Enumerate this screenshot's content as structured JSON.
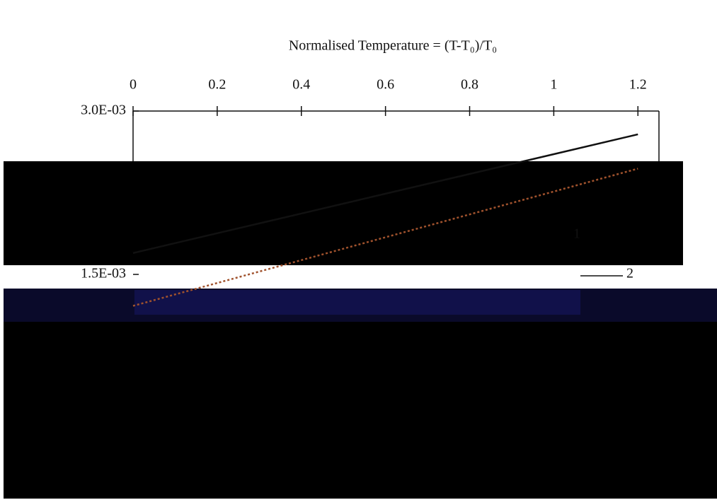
{
  "chart_data": {
    "type": "line",
    "title": "Normalised  Temperature = (T-T₀)/T₀",
    "x": [
      0,
      0.2,
      0.4,
      0.6,
      0.8,
      1,
      1.2
    ],
    "xlim": [
      0,
      1.25
    ],
    "xticks": [
      0,
      0.2,
      0.4,
      0.6,
      0.8,
      1,
      1.2
    ],
    "ylim": [
      0,
      0.003
    ],
    "yticks": [
      {
        "value": 0.0015,
        "label": "1.5E-03"
      },
      {
        "value": 0.003,
        "label": "3.0E-03"
      }
    ],
    "series": [
      {
        "name": "1",
        "color": "#111111",
        "values": [
          0.001696,
          0.001878,
          0.002059,
          0.002241,
          0.002422,
          0.002604,
          0.002786
        ]
      },
      {
        "name": "2",
        "color": "#a0522d",
        "values": [
          0.001211,
          0.001421,
          0.001631,
          0.001841,
          0.002051,
          0.002261,
          0.002471
        ]
      }
    ]
  }
}
